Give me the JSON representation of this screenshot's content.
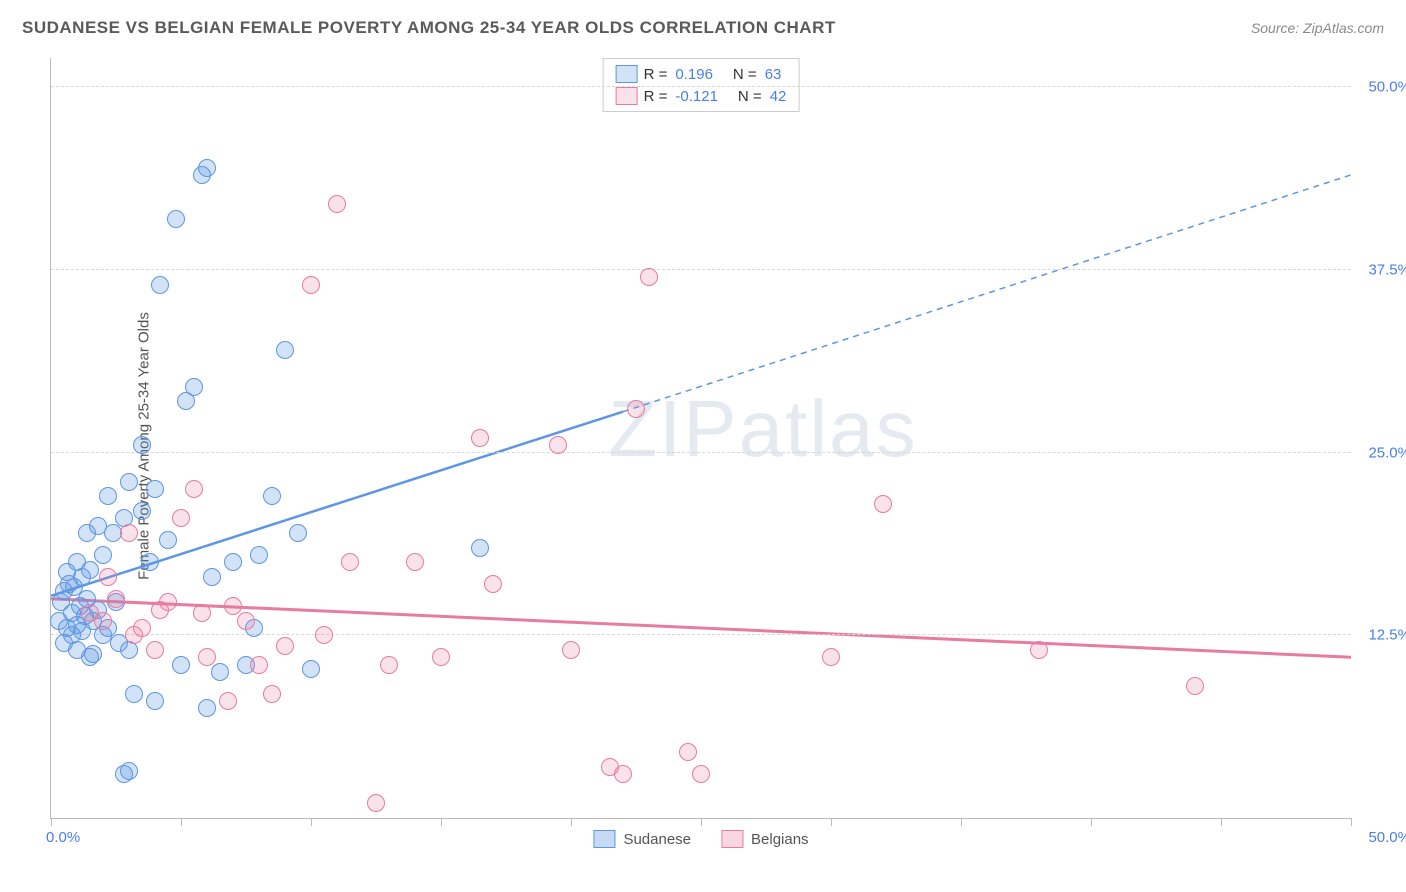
{
  "title": "SUDANESE VS BELGIAN FEMALE POVERTY AMONG 25-34 YEAR OLDS CORRELATION CHART",
  "source_label": "Source: ZipAtlas.com",
  "ylabel": "Female Poverty Among 25-34 Year Olds",
  "watermark": "ZIPatlas",
  "chart": {
    "type": "scatter",
    "xlim": [
      0,
      50
    ],
    "ylim": [
      0,
      52
    ],
    "x_tick_positions": [
      0,
      5,
      10,
      15,
      20,
      25,
      30,
      35,
      40,
      45,
      50
    ],
    "x_min_label": "0.0%",
    "x_max_label": "50.0%",
    "y_gridlines": [
      {
        "value": 12.5,
        "label": "12.5%"
      },
      {
        "value": 25.0,
        "label": "25.0%"
      },
      {
        "value": 37.5,
        "label": "37.5%"
      },
      {
        "value": 50.0,
        "label": "50.0%"
      }
    ],
    "background_color": "#ffffff",
    "grid_color": "#d8d8d8",
    "axis_color": "#bbbbbb",
    "axis_label_color": "#4a7ee8",
    "marker_radius": 9,
    "marker_border_width": 1.5,
    "marker_fill_opacity": 0.28,
    "series": [
      {
        "name": "Sudanese",
        "color": "#5e96e2",
        "fill": "rgba(94,150,226,0.28)",
        "R": "0.196",
        "N": "63",
        "trend": {
          "x1": 0,
          "y1": 15.2,
          "x2_solid": 22,
          "y2_solid": 27.8,
          "x2": 50,
          "y2": 44.0,
          "width": 2.5
        },
        "points": [
          [
            0.3,
            13.5
          ],
          [
            0.4,
            14.8
          ],
          [
            0.5,
            12.0
          ],
          [
            0.5,
            15.5
          ],
          [
            0.6,
            13.0
          ],
          [
            0.7,
            16.0
          ],
          [
            0.8,
            12.5
          ],
          [
            0.8,
            14.0
          ],
          [
            0.9,
            15.8
          ],
          [
            1.0,
            11.5
          ],
          [
            1.0,
            13.2
          ],
          [
            1.1,
            14.5
          ],
          [
            1.2,
            12.8
          ],
          [
            1.2,
            16.5
          ],
          [
            1.3,
            13.8
          ],
          [
            1.4,
            15.0
          ],
          [
            1.5,
            11.0
          ],
          [
            1.5,
            17.0
          ],
          [
            1.6,
            13.5
          ],
          [
            1.8,
            14.2
          ],
          [
            2.0,
            12.5
          ],
          [
            2.0,
            18.0
          ],
          [
            2.2,
            13.0
          ],
          [
            2.4,
            19.5
          ],
          [
            2.5,
            14.8
          ],
          [
            2.8,
            20.5
          ],
          [
            3.0,
            11.5
          ],
          [
            3.0,
            23.0
          ],
          [
            3.2,
            8.5
          ],
          [
            3.5,
            21.0
          ],
          [
            3.5,
            25.5
          ],
          [
            3.8,
            17.5
          ],
          [
            4.0,
            8.0
          ],
          [
            4.0,
            22.5
          ],
          [
            4.2,
            36.5
          ],
          [
            4.5,
            19.0
          ],
          [
            4.8,
            41.0
          ],
          [
            5.0,
            10.5
          ],
          [
            5.2,
            28.5
          ],
          [
            5.5,
            29.5
          ],
          [
            5.8,
            44.0
          ],
          [
            6.0,
            44.5
          ],
          [
            6.0,
            7.5
          ],
          [
            6.2,
            16.5
          ],
          [
            6.5,
            10.0
          ],
          [
            7.0,
            17.5
          ],
          [
            7.5,
            10.5
          ],
          [
            7.8,
            13.0
          ],
          [
            8.0,
            18.0
          ],
          [
            8.5,
            22.0
          ],
          [
            9.0,
            32.0
          ],
          [
            9.5,
            19.5
          ],
          [
            10.0,
            10.2
          ],
          [
            2.8,
            3.0
          ],
          [
            3.0,
            3.2
          ],
          [
            16.5,
            18.5
          ],
          [
            1.0,
            17.5
          ],
          [
            1.8,
            20.0
          ],
          [
            2.2,
            22.0
          ],
          [
            1.4,
            19.5
          ],
          [
            0.6,
            16.8
          ],
          [
            1.6,
            11.2
          ],
          [
            2.6,
            12.0
          ]
        ]
      },
      {
        "name": "Belgians",
        "color": "#e87ba0",
        "fill": "rgba(232,123,160,0.22)",
        "R": "-0.121",
        "N": "42",
        "trend": {
          "x1": 0,
          "y1": 15.0,
          "x2_solid": 50,
          "y2_solid": 11.0,
          "x2": 50,
          "y2": 11.0,
          "width": 3
        },
        "points": [
          [
            1.5,
            14.0
          ],
          [
            2.0,
            13.5
          ],
          [
            2.5,
            15.0
          ],
          [
            3.0,
            19.5
          ],
          [
            3.5,
            13.0
          ],
          [
            4.0,
            11.5
          ],
          [
            4.5,
            14.8
          ],
          [
            5.0,
            20.5
          ],
          [
            5.5,
            22.5
          ],
          [
            6.0,
            11.0
          ],
          [
            6.8,
            8.0
          ],
          [
            7.5,
            13.5
          ],
          [
            8.0,
            10.5
          ],
          [
            8.5,
            8.5
          ],
          [
            9.0,
            11.8
          ],
          [
            10.0,
            36.5
          ],
          [
            10.5,
            12.5
          ],
          [
            11.0,
            42.0
          ],
          [
            11.5,
            17.5
          ],
          [
            12.5,
            1.0
          ],
          [
            13.0,
            10.5
          ],
          [
            14.0,
            17.5
          ],
          [
            15.0,
            11.0
          ],
          [
            16.5,
            26.0
          ],
          [
            17.0,
            16.0
          ],
          [
            19.5,
            25.5
          ],
          [
            20.0,
            11.5
          ],
          [
            21.5,
            3.5
          ],
          [
            22.0,
            3.0
          ],
          [
            22.5,
            28.0
          ],
          [
            23.0,
            37.0
          ],
          [
            24.5,
            4.5
          ],
          [
            25.0,
            3.0
          ],
          [
            30.0,
            11.0
          ],
          [
            32.0,
            21.5
          ],
          [
            38.0,
            11.5
          ],
          [
            44.0,
            9.0
          ],
          [
            4.2,
            14.2
          ],
          [
            5.8,
            14.0
          ],
          [
            3.2,
            12.5
          ],
          [
            2.2,
            16.5
          ],
          [
            7.0,
            14.5
          ]
        ]
      }
    ]
  },
  "legend_bottom": [
    {
      "label": "Sudanese",
      "fill": "rgba(94,150,226,0.35)",
      "border": "#5e96e2"
    },
    {
      "label": "Belgians",
      "fill": "rgba(232,123,160,0.30)",
      "border": "#e87ba0"
    }
  ]
}
